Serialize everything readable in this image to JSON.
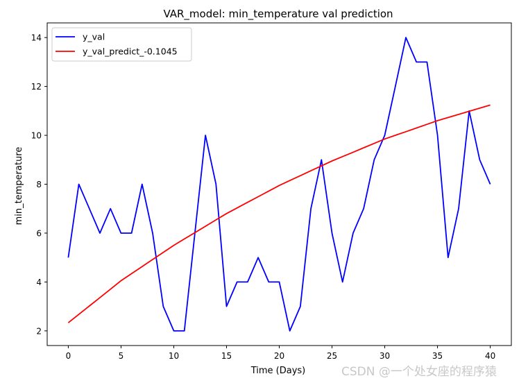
{
  "chart_data": {
    "type": "line",
    "title": "VAR_model: min_temperature val prediction",
    "xlabel": "Time (Days)",
    "ylabel": "min_temperature",
    "xlim": [
      -2,
      42
    ],
    "ylim": [
      1.4,
      14.6
    ],
    "xticks": [
      0,
      5,
      10,
      15,
      20,
      25,
      30,
      35,
      40
    ],
    "yticks": [
      2,
      4,
      6,
      8,
      10,
      12,
      14
    ],
    "legend_position": "top-left",
    "series": [
      {
        "name": "y_val",
        "color": "#0000ff",
        "x": [
          0,
          1,
          2,
          3,
          4,
          5,
          6,
          7,
          8,
          9,
          10,
          11,
          12,
          13,
          14,
          15,
          16,
          17,
          18,
          19,
          20,
          21,
          22,
          23,
          24,
          25,
          26,
          27,
          28,
          29,
          30,
          31,
          32,
          33,
          34,
          35,
          36,
          37,
          38,
          39,
          40
        ],
        "values": [
          5,
          8,
          7,
          6,
          7,
          6,
          6,
          8,
          6,
          3,
          2,
          2,
          6,
          10,
          8,
          3,
          4,
          4,
          5,
          4,
          4,
          2,
          3,
          7,
          9,
          6,
          4,
          6,
          7,
          9,
          10,
          12,
          14,
          13,
          13,
          10,
          5,
          7,
          11,
          9,
          8
        ]
      },
      {
        "name": "y_val_predict_-0.1045",
        "color": "#ff0000",
        "x": [
          0,
          5,
          10,
          15,
          20,
          25,
          30,
          35,
          40
        ],
        "values": [
          2.33,
          4.05,
          5.5,
          6.8,
          7.95,
          8.95,
          9.85,
          10.6,
          11.24
        ]
      }
    ]
  },
  "watermark": "CSDN @一个处女座的程序猿"
}
